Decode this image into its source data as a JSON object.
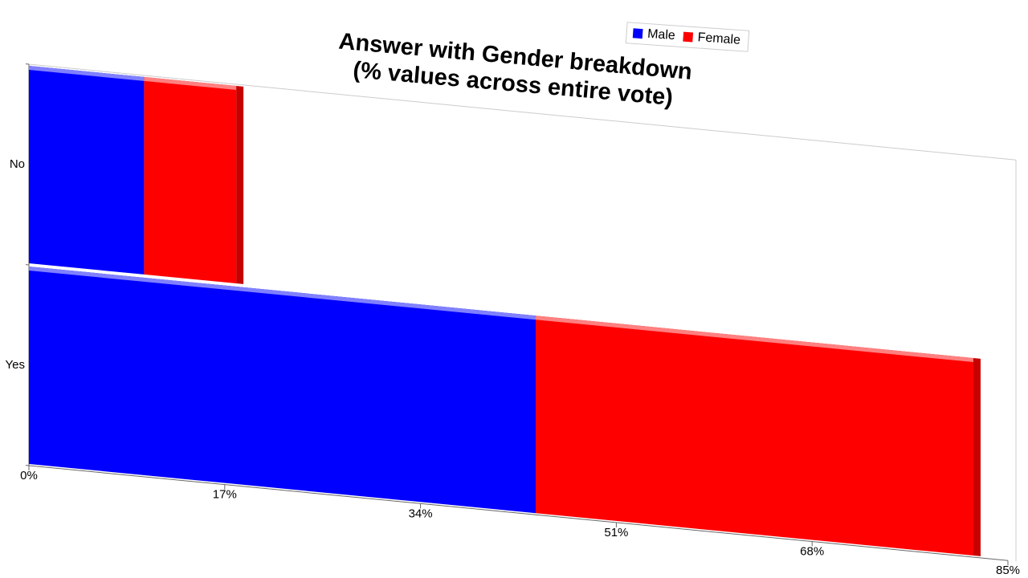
{
  "chart_data": {
    "type": "stacked-bar-horizontal",
    "title": "Answer with Gender breakdown",
    "subtitle": "(% values across entire vote)",
    "categories": [
      "No",
      "Yes"
    ],
    "series": [
      {
        "name": "Male",
        "color": "#0000ff",
        "values": [
          10,
          44
        ]
      },
      {
        "name": "Female",
        "color": "#ff0000",
        "values": [
          8,
          38
        ]
      }
    ],
    "xlim": [
      0,
      85
    ],
    "xticks": [
      {
        "value": 0,
        "label": "0%"
      },
      {
        "value": 17,
        "label": "17%"
      },
      {
        "value": 34,
        "label": "34%"
      },
      {
        "value": 51,
        "label": "51%"
      },
      {
        "value": 68,
        "label": "68%"
      },
      {
        "value": 85,
        "label": "85%"
      }
    ],
    "legend": "top"
  }
}
